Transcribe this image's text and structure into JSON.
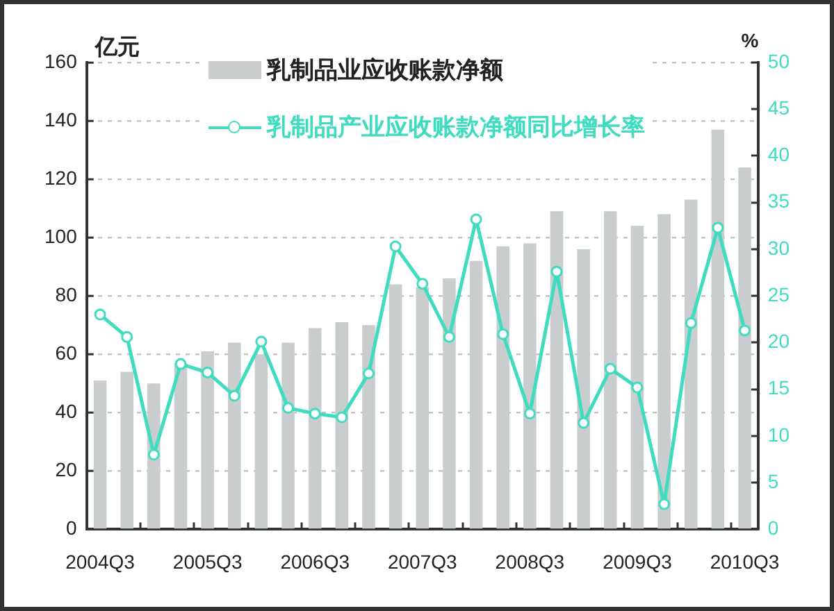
{
  "chart_data": {
    "type": "bar",
    "ylabel": "亿元",
    "y2label": "%",
    "categories": [
      "2004Q3",
      null,
      null,
      null,
      "2005Q3",
      null,
      null,
      null,
      "2006Q3",
      null,
      null,
      null,
      "2007Q3",
      null,
      null,
      null,
      "2008Q3",
      null,
      null,
      null,
      "2009Q3",
      null,
      null,
      null,
      "2010Q3"
    ],
    "series": [
      {
        "name": "乳制品业应收账款净额",
        "color": "#c9cdcd",
        "values": [
          51,
          54,
          50,
          57,
          61,
          64,
          60,
          64,
          69,
          71,
          70,
          84,
          83,
          86,
          92,
          97,
          98,
          109,
          96,
          109,
          104,
          108,
          113,
          137,
          124
        ]
      },
      {
        "name": "乳制品产业应收账款净额同比增长率",
        "type": "line",
        "axis": "y2",
        "color": "#3fdcbf",
        "values": [
          23,
          20.6,
          8,
          17.7,
          16.8,
          14.3,
          20.1,
          13,
          12.4,
          12,
          16.7,
          30.3,
          26.3,
          20.6,
          33.2,
          20.9,
          12.4,
          27.6,
          11.4,
          17.2,
          15.2,
          2.7,
          22.1,
          32.3,
          21.3
        ]
      }
    ],
    "ylim": [
      0,
      160
    ],
    "yticks": [
      0,
      20,
      40,
      60,
      80,
      100,
      120,
      140,
      160
    ],
    "y2lim": [
      0,
      50
    ],
    "y2ticks": [
      0,
      5,
      10,
      15,
      20,
      25,
      30,
      35,
      40,
      45,
      50
    ],
    "grid": "y",
    "legend": "top",
    "marker": "circle"
  }
}
